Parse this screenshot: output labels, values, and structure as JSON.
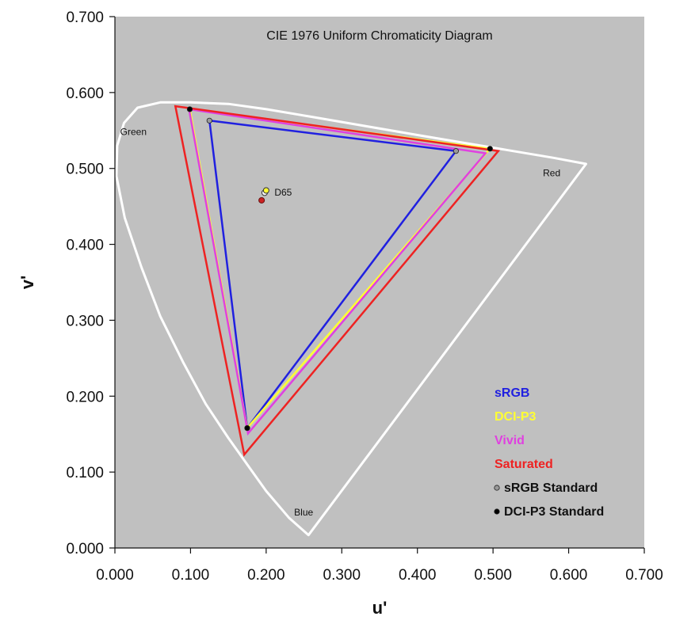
{
  "chart_data": {
    "type": "scatter",
    "title": "CIE 1976 Uniform Chromaticity Diagram",
    "xlabel": "u'",
    "ylabel": "v'",
    "xlim": [
      0,
      0.7
    ],
    "ylim": [
      0,
      0.7
    ],
    "x_ticks": [
      "0.000",
      "0.100",
      "0.200",
      "0.300",
      "0.400",
      "0.500",
      "0.600",
      "0.700"
    ],
    "y_ticks": [
      "0.000",
      "0.100",
      "0.200",
      "0.300",
      "0.400",
      "0.500",
      "0.600",
      "0.700"
    ],
    "grid": false,
    "plot_background": "#c0c0c0",
    "region_labels": [
      {
        "text": "Green",
        "u": 0.007,
        "v": 0.544
      },
      {
        "text": "Red",
        "u": 0.566,
        "v": 0.49
      },
      {
        "text": "Blue",
        "u": 0.237,
        "v": 0.043
      },
      {
        "text": "D65",
        "u": 0.211,
        "v": 0.464
      }
    ],
    "locus": {
      "name": "spectral locus",
      "color": "#ffffff",
      "points": [
        [
          0.256,
          0.017
        ],
        [
          0.23,
          0.04
        ],
        [
          0.2,
          0.075
        ],
        [
          0.175,
          0.11
        ],
        [
          0.15,
          0.145
        ],
        [
          0.12,
          0.19
        ],
        [
          0.09,
          0.245
        ],
        [
          0.06,
          0.305
        ],
        [
          0.035,
          0.37
        ],
        [
          0.013,
          0.435
        ],
        [
          0.002,
          0.49
        ],
        [
          0.003,
          0.53
        ],
        [
          0.012,
          0.56
        ],
        [
          0.03,
          0.58
        ],
        [
          0.06,
          0.587
        ],
        [
          0.1,
          0.587
        ],
        [
          0.15,
          0.585
        ],
        [
          0.2,
          0.578
        ],
        [
          0.26,
          0.568
        ],
        [
          0.33,
          0.556
        ],
        [
          0.4,
          0.544
        ],
        [
          0.46,
          0.534
        ],
        [
          0.52,
          0.524
        ],
        [
          0.58,
          0.514
        ],
        [
          0.623,
          0.506
        ]
      ]
    },
    "series": [
      {
        "name": "sRGB",
        "color": "#2020e0",
        "vertices": [
          [
            0.125,
            0.563
          ],
          [
            0.451,
            0.523
          ],
          [
            0.175,
            0.158
          ]
        ]
      },
      {
        "name": "DCI-P3",
        "color": "#ffff33",
        "vertices": [
          [
            0.099,
            0.578
          ],
          [
            0.496,
            0.526
          ],
          [
            0.175,
            0.158
          ]
        ]
      },
      {
        "name": "Vivid",
        "color": "#e040e0",
        "vertices": [
          [
            0.098,
            0.578
          ],
          [
            0.49,
            0.52
          ],
          [
            0.176,
            0.151
          ]
        ]
      },
      {
        "name": "Saturated",
        "color": "#ee2222",
        "vertices": [
          [
            0.08,
            0.582
          ],
          [
            0.507,
            0.523
          ],
          [
            0.171,
            0.123
          ]
        ]
      }
    ],
    "standard_points": [
      {
        "name": "sRGB Standard",
        "fill": "#999999",
        "points": [
          [
            0.125,
            0.563
          ],
          [
            0.451,
            0.523
          ],
          [
            0.175,
            0.158
          ]
        ]
      },
      {
        "name": "DCI-P3 Standard",
        "fill": "#000000",
        "points": [
          [
            0.099,
            0.578
          ],
          [
            0.496,
            0.526
          ],
          [
            0.175,
            0.158
          ]
        ]
      }
    ],
    "white_points": [
      {
        "u": 0.198,
        "v": 0.468,
        "fill": "#ffffff",
        "stroke": "#333333"
      },
      {
        "u": 0.2,
        "v": 0.471,
        "fill": "#ffff33",
        "stroke": "#333333"
      },
      {
        "u": 0.194,
        "v": 0.458,
        "fill": "#cc2222",
        "stroke": "#661111"
      }
    ],
    "legend": {
      "placement": "bottom-right",
      "entries": [
        {
          "label": "sRGB",
          "color": "#2020e0",
          "marker": "none"
        },
        {
          "label": "DCI-P3",
          "color": "#ffff33",
          "marker": "none"
        },
        {
          "label": "Vivid",
          "color": "#e040e0",
          "marker": "none"
        },
        {
          "label": "Saturated",
          "color": "#ee2222",
          "marker": "none"
        },
        {
          "label": "sRGB Standard",
          "color": "#111111",
          "marker": "#999999"
        },
        {
          "label": "DCI-P3 Standard",
          "color": "#111111",
          "marker": "#000000"
        }
      ]
    }
  }
}
